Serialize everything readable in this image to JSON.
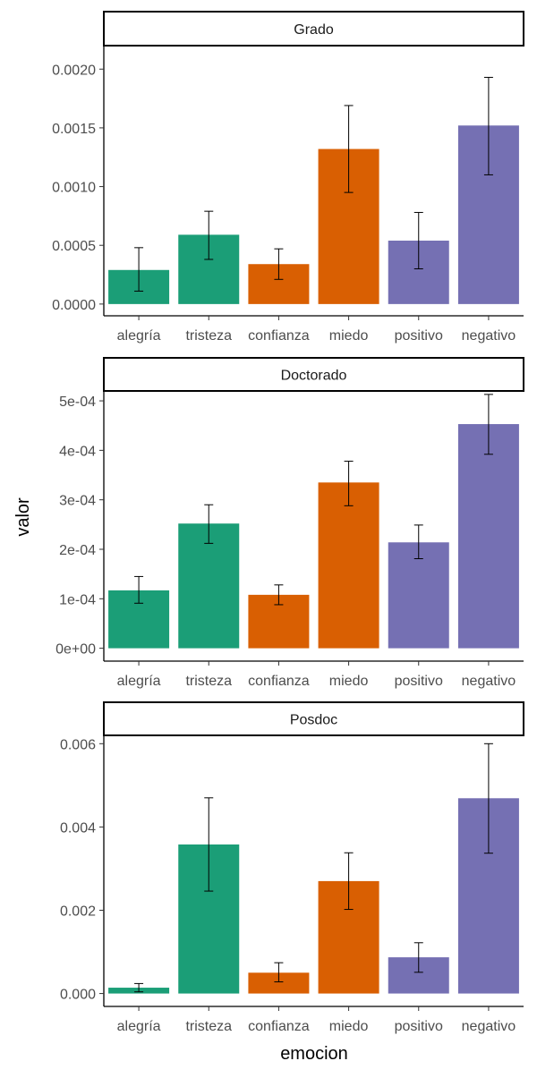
{
  "chart_data": {
    "type": "bar",
    "xlabel": "emocion",
    "ylabel": "valor",
    "categories": [
      "alegría",
      "tristeza",
      "confianza",
      "miedo",
      "positivo",
      "negativo"
    ],
    "colors": [
      "#1b9e77",
      "#1b9e77",
      "#d95f02",
      "#d95f02",
      "#7570b3",
      "#7570b3"
    ],
    "grid": false,
    "panels": [
      {
        "title": "Grado",
        "ylim": [
          -0.0001,
          0.0022
        ],
        "yticks": [
          0,
          0.0005,
          0.001,
          0.0015,
          0.002
        ],
        "ytick_labels": [
          "0.0000",
          "0.0005",
          "0.0010",
          "0.0015",
          "0.0020"
        ],
        "values": [
          0.00029,
          0.00059,
          0.00034,
          0.00132,
          0.00054,
          0.00152
        ],
        "err_low": [
          0.00011,
          0.00038,
          0.00021,
          0.00095,
          0.0003,
          0.0011
        ],
        "err_high": [
          0.00048,
          0.00079,
          0.00047,
          0.00169,
          0.00078,
          0.00193
        ]
      },
      {
        "title": "Doctorado",
        "ylim": [
          -2.6e-05,
          0.00052
        ],
        "yticks": [
          0,
          0.0001,
          0.0002,
          0.0003,
          0.0004,
          0.0005
        ],
        "ytick_labels": [
          "0e+00",
          "1e-04",
          "2e-04",
          "3e-04",
          "4e-04",
          "5e-04"
        ],
        "values": [
          0.000117,
          0.000252,
          0.000108,
          0.000335,
          0.000214,
          0.000453
        ],
        "err_low": [
          9.1e-05,
          0.000212,
          8.8e-05,
          0.000288,
          0.000181,
          0.000392
        ],
        "err_high": [
          0.000145,
          0.00029,
          0.000128,
          0.000378,
          0.000249,
          0.000513
        ]
      },
      {
        "title": "Posdoc",
        "ylim": [
          -0.00031,
          0.0062
        ],
        "yticks": [
          0,
          0.002,
          0.004,
          0.006
        ],
        "ytick_labels": [
          "0.000",
          "0.002",
          "0.004",
          "0.006"
        ],
        "values": [
          0.00014,
          0.00358,
          0.0005,
          0.0027,
          0.00087,
          0.00469
        ],
        "err_low": [
          4e-05,
          0.00246,
          0.00028,
          0.00202,
          0.00051,
          0.00337
        ],
        "err_high": [
          0.00024,
          0.0047,
          0.00074,
          0.00338,
          0.00122,
          0.006
        ]
      }
    ]
  }
}
